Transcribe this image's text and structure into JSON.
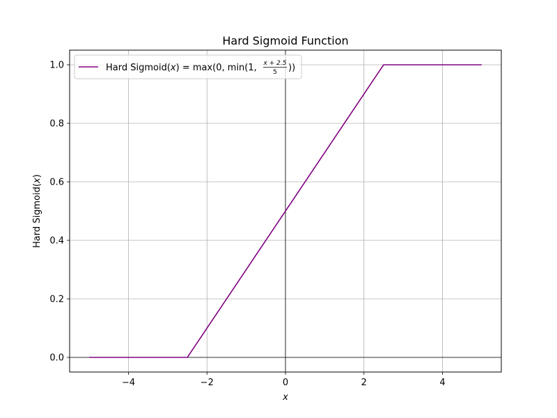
{
  "chart_data": {
    "type": "line",
    "title": "Hard Sigmoid Function",
    "xlabel": "x",
    "ylabel": "Hard Sigmoid(x)",
    "xlim": [
      -5.5,
      5.5
    ],
    "ylim": [
      -0.05,
      1.05
    ],
    "x_ticks": [
      -4,
      -2,
      0,
      2,
      4
    ],
    "x_tick_labels": [
      "−4",
      "−2",
      "0",
      "2",
      "4"
    ],
    "y_ticks": [
      0.0,
      0.2,
      0.4,
      0.6,
      0.8,
      1.0
    ],
    "y_tick_labels": [
      "0.0",
      "0.2",
      "0.4",
      "0.6",
      "0.8",
      "1.0"
    ],
    "grid": true,
    "legend_position": "top-left",
    "series": [
      {
        "name": "Hard Sigmoid(x) = max(0, min(1, (x+2.5)/5))",
        "color": "#800080",
        "x": [
          -5,
          -2.5,
          2.5,
          5
        ],
        "y": [
          0,
          0,
          1,
          1
        ]
      }
    ],
    "reference_lines": {
      "horizontal": [
        0
      ],
      "vertical": [
        0
      ],
      "color": "#000000"
    },
    "legend": {
      "label_prefix": "Hard Sigmoid(",
      "label_var": "x",
      "label_mid": ") = max(0, min(1, ",
      "frac_numerator": "x + 2.5",
      "frac_denominator": "5",
      "label_suffix": "))"
    }
  }
}
